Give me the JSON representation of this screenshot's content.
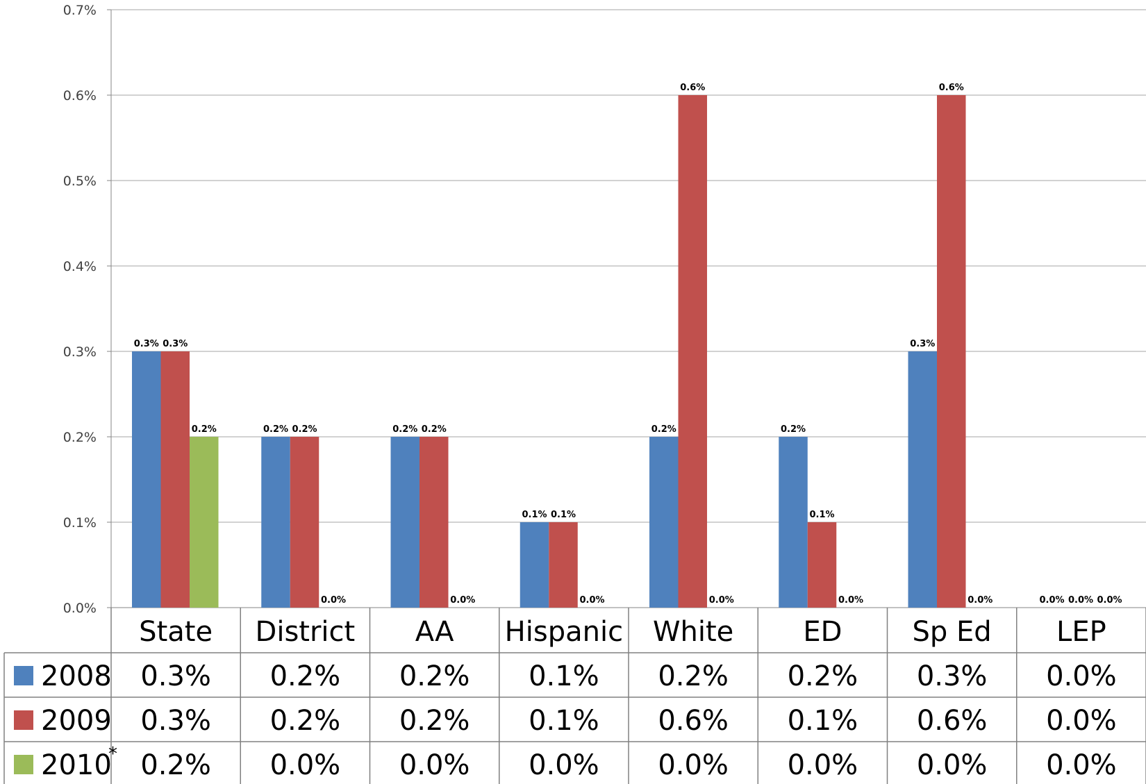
{
  "chart_data": {
    "type": "bar",
    "title": "",
    "xlabel": "",
    "ylabel": "",
    "ylim": [
      0,
      0.7
    ],
    "yticks": [
      "0.0%",
      "0.1%",
      "0.2%",
      "0.3%",
      "0.4%",
      "0.5%",
      "0.6%",
      "0.7%"
    ],
    "grid": true,
    "legend": "data-table-below",
    "categories": [
      "State",
      "District",
      "AA",
      "Hispanic",
      "White",
      "ED",
      "Sp Ed",
      "LEP"
    ],
    "series": [
      {
        "name": "2008",
        "color": "#4F81BD",
        "values": [
          0.3,
          0.2,
          0.2,
          0.1,
          0.2,
          0.2,
          0.3,
          0.0
        ],
        "labels": [
          "0.3%",
          "0.2%",
          "0.2%",
          "0.1%",
          "0.2%",
          "0.2%",
          "0.3%",
          "0.0%"
        ]
      },
      {
        "name": "2009",
        "color": "#C0504D",
        "values": [
          0.3,
          0.2,
          0.2,
          0.1,
          0.6,
          0.1,
          0.6,
          0.0
        ],
        "labels": [
          "0.3%",
          "0.2%",
          "0.2%",
          "0.1%",
          "0.6%",
          "0.1%",
          "0.6%",
          "0.0%"
        ]
      },
      {
        "name": "2010",
        "note_marker": "*",
        "color": "#9BBB59",
        "values": [
          0.2,
          0.0,
          0.0,
          0.0,
          0.0,
          0.0,
          0.0,
          0.0
        ],
        "labels": [
          "0.2%",
          "0.0%",
          "0.0%",
          "0.0%",
          "0.0%",
          "0.0%",
          "0.0%",
          "0.0%"
        ]
      }
    ]
  }
}
